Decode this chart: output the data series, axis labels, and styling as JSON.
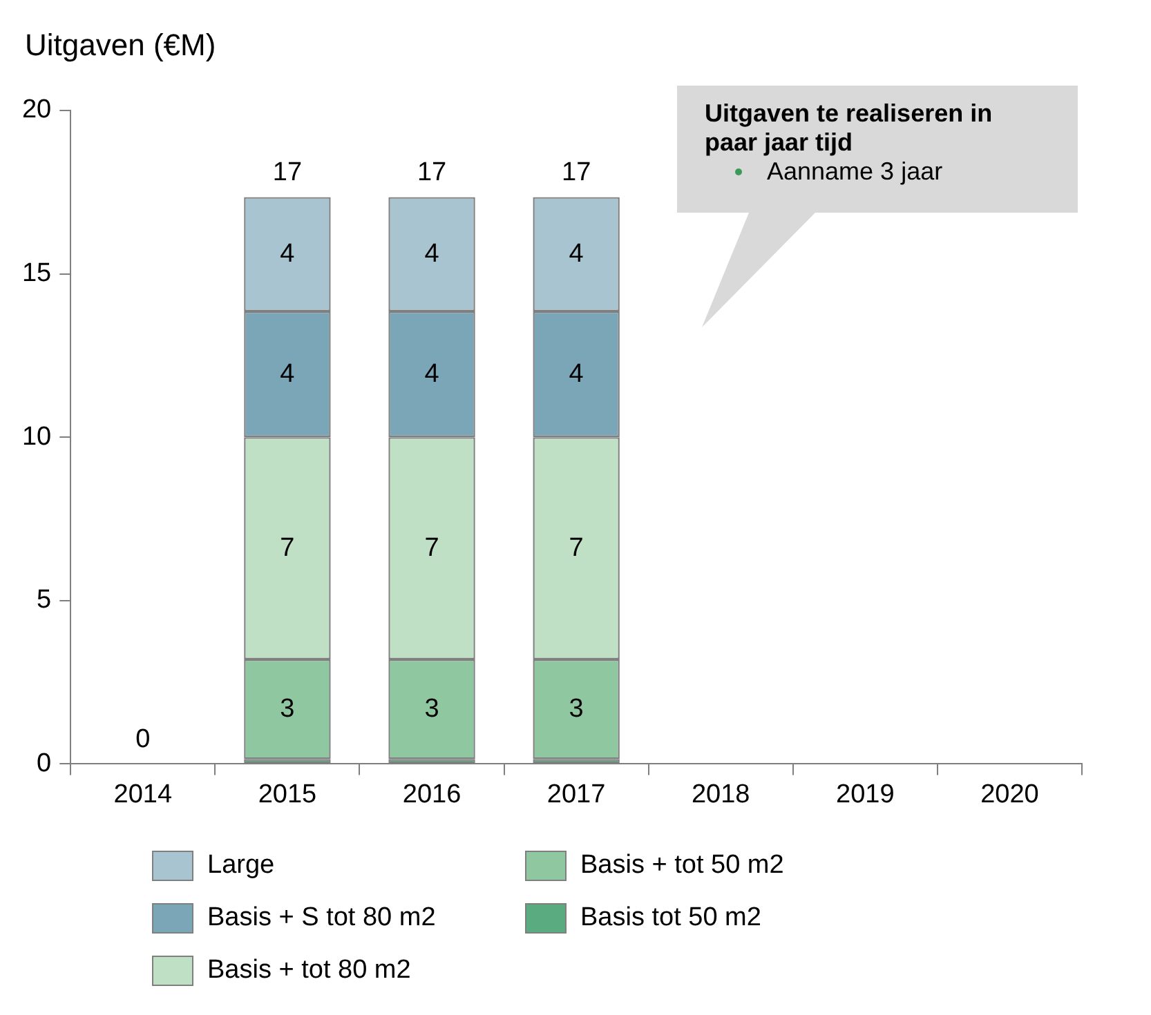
{
  "chart_data": {
    "type": "bar",
    "stacked": true,
    "ylabel": "Uitgaven (€M)",
    "categories": [
      "2014",
      "2015",
      "2016",
      "2017",
      "2018",
      "2019",
      "2020"
    ],
    "ylim": [
      0,
      20
    ],
    "yticks": [
      0,
      5,
      10,
      15,
      20
    ],
    "grid": false,
    "legend": "bottom",
    "series": [
      {
        "name": "Basis tot 50 m2",
        "color": "#5aab7f",
        "values": [
          0,
          0.15,
          0.15,
          0.15,
          0,
          0,
          0
        ],
        "value_labels": [
          null,
          null,
          null,
          null,
          null,
          null,
          null
        ]
      },
      {
        "name": "Basis + tot 50 m2",
        "color": "#8fc8a0",
        "values": [
          0,
          3.05,
          3.05,
          3.05,
          0,
          0,
          0
        ],
        "value_labels": [
          null,
          "3",
          "3",
          "3",
          null,
          null,
          null
        ]
      },
      {
        "name": "Basis + tot 80 m2",
        "color": "#bfe0c4",
        "values": [
          0,
          6.8,
          6.8,
          6.8,
          0,
          0,
          0
        ],
        "value_labels": [
          null,
          "7",
          "7",
          "7",
          null,
          null,
          null
        ]
      },
      {
        "name": "Basis + S tot 80 m2",
        "color": "#7aa6b8",
        "values": [
          0,
          3.85,
          3.85,
          3.85,
          0,
          0,
          0
        ],
        "value_labels": [
          null,
          "4",
          "4",
          "4",
          null,
          null,
          null
        ]
      },
      {
        "name": "Large",
        "color": "#a9c4d1",
        "values": [
          0,
          3.5,
          3.5,
          3.5,
          0,
          0,
          0
        ],
        "value_labels": [
          null,
          "4",
          "4",
          "4",
          null,
          null,
          null
        ]
      }
    ],
    "totals": [
      "0",
      "17",
      "17",
      "17",
      null,
      null,
      null
    ],
    "annotations": [
      "Uitgaven te realiseren in paar jaar tijd",
      "Aanname 3 jaar"
    ]
  }
}
